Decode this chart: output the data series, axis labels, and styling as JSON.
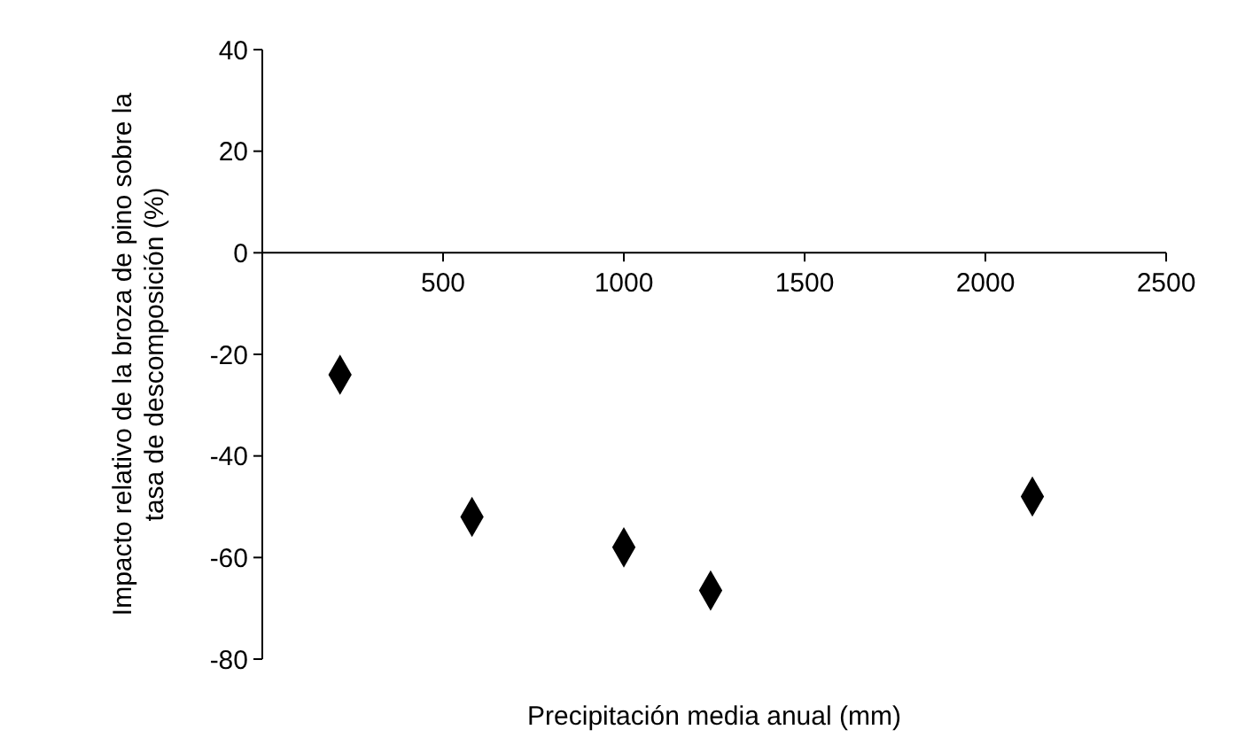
{
  "chart_data": {
    "type": "scatter",
    "xlabel": "Precipitación media anual (mm)",
    "ylabel": "Impacto relativo de la broza de pino sobre la tasa de descomposición (%)",
    "x": [
      215,
      580,
      1000,
      1240,
      2130
    ],
    "values": [
      -24,
      -52,
      -58,
      -66.5,
      -48
    ],
    "color": "#000000",
    "marker": "diamond",
    "grid": false,
    "xlim": [
      0,
      2500
    ],
    "xticks": [
      {
        "value": 0,
        "label": null
      },
      500,
      1000,
      1500,
      2000,
      2500
    ],
    "ylim": [
      -80,
      40
    ],
    "yticks": [
      -80,
      -60,
      -40,
      -20,
      0,
      20,
      40
    ]
  }
}
